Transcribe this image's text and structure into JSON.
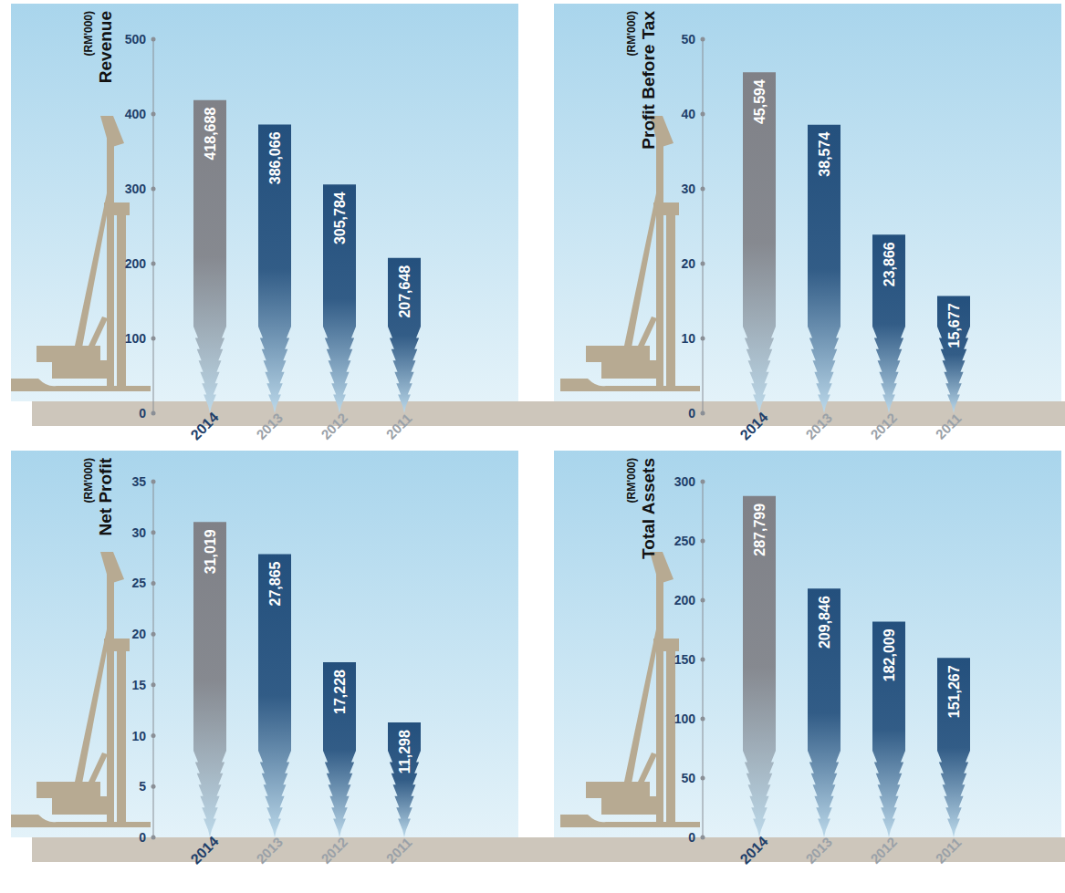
{
  "chart_data": [
    {
      "type": "bar",
      "title": "Revenue",
      "ylabel": "(RM'000)",
      "categories": [
        "2014",
        "2013",
        "2012",
        "2011"
      ],
      "values": [
        418.688,
        386.066,
        305.784,
        207.648
      ],
      "value_labels": [
        "418,688",
        "386,066",
        "305,784",
        "207,648"
      ],
      "colors": [
        "#808187",
        "#24507d",
        "#24507d",
        "#24507d"
      ],
      "ylim": [
        0,
        500
      ],
      "yticks": [
        0,
        100,
        200,
        300,
        400,
        500
      ],
      "data_labels": true,
      "grid": false
    },
    {
      "type": "bar",
      "title": "Profit Before Tax",
      "ylabel": "(RM'000)",
      "categories": [
        "2014",
        "2013",
        "2012",
        "2011"
      ],
      "values": [
        45.594,
        38.574,
        23.866,
        15.677
      ],
      "value_labels": [
        "45,594",
        "38,574",
        "23,866",
        "15,677"
      ],
      "colors": [
        "#808187",
        "#24507d",
        "#24507d",
        "#24507d"
      ],
      "ylim": [
        0,
        50
      ],
      "yticks": [
        0,
        10,
        20,
        30,
        40,
        50
      ],
      "data_labels": true,
      "grid": false
    },
    {
      "type": "bar",
      "title": "Net Profit",
      "ylabel": "(RM'000)",
      "categories": [
        "2014",
        "2013",
        "2012",
        "2011"
      ],
      "values": [
        31.019,
        27.865,
        17.228,
        11.298
      ],
      "value_labels": [
        "31,019",
        "27,865",
        "17,228",
        "11,298"
      ],
      "colors": [
        "#808187",
        "#24507d",
        "#24507d",
        "#24507d"
      ],
      "ylim": [
        0,
        35
      ],
      "yticks": [
        0,
        5,
        10,
        15,
        20,
        25,
        30,
        35
      ],
      "data_labels": true,
      "grid": false
    },
    {
      "type": "bar",
      "title": "Total Assets",
      "ylabel": "(RM'000)",
      "categories": [
        "2014",
        "2013",
        "2012",
        "2011"
      ],
      "values": [
        287.799,
        209.846,
        182.009,
        151.267
      ],
      "value_labels": [
        "287,799",
        "209,846",
        "182,009",
        "151,267"
      ],
      "colors": [
        "#808187",
        "#24507d",
        "#24507d",
        "#24507d"
      ],
      "ylim": [
        0,
        300
      ],
      "yticks": [
        0,
        50,
        100,
        150,
        200,
        250,
        300
      ],
      "data_labels": true,
      "grid": false
    }
  ]
}
